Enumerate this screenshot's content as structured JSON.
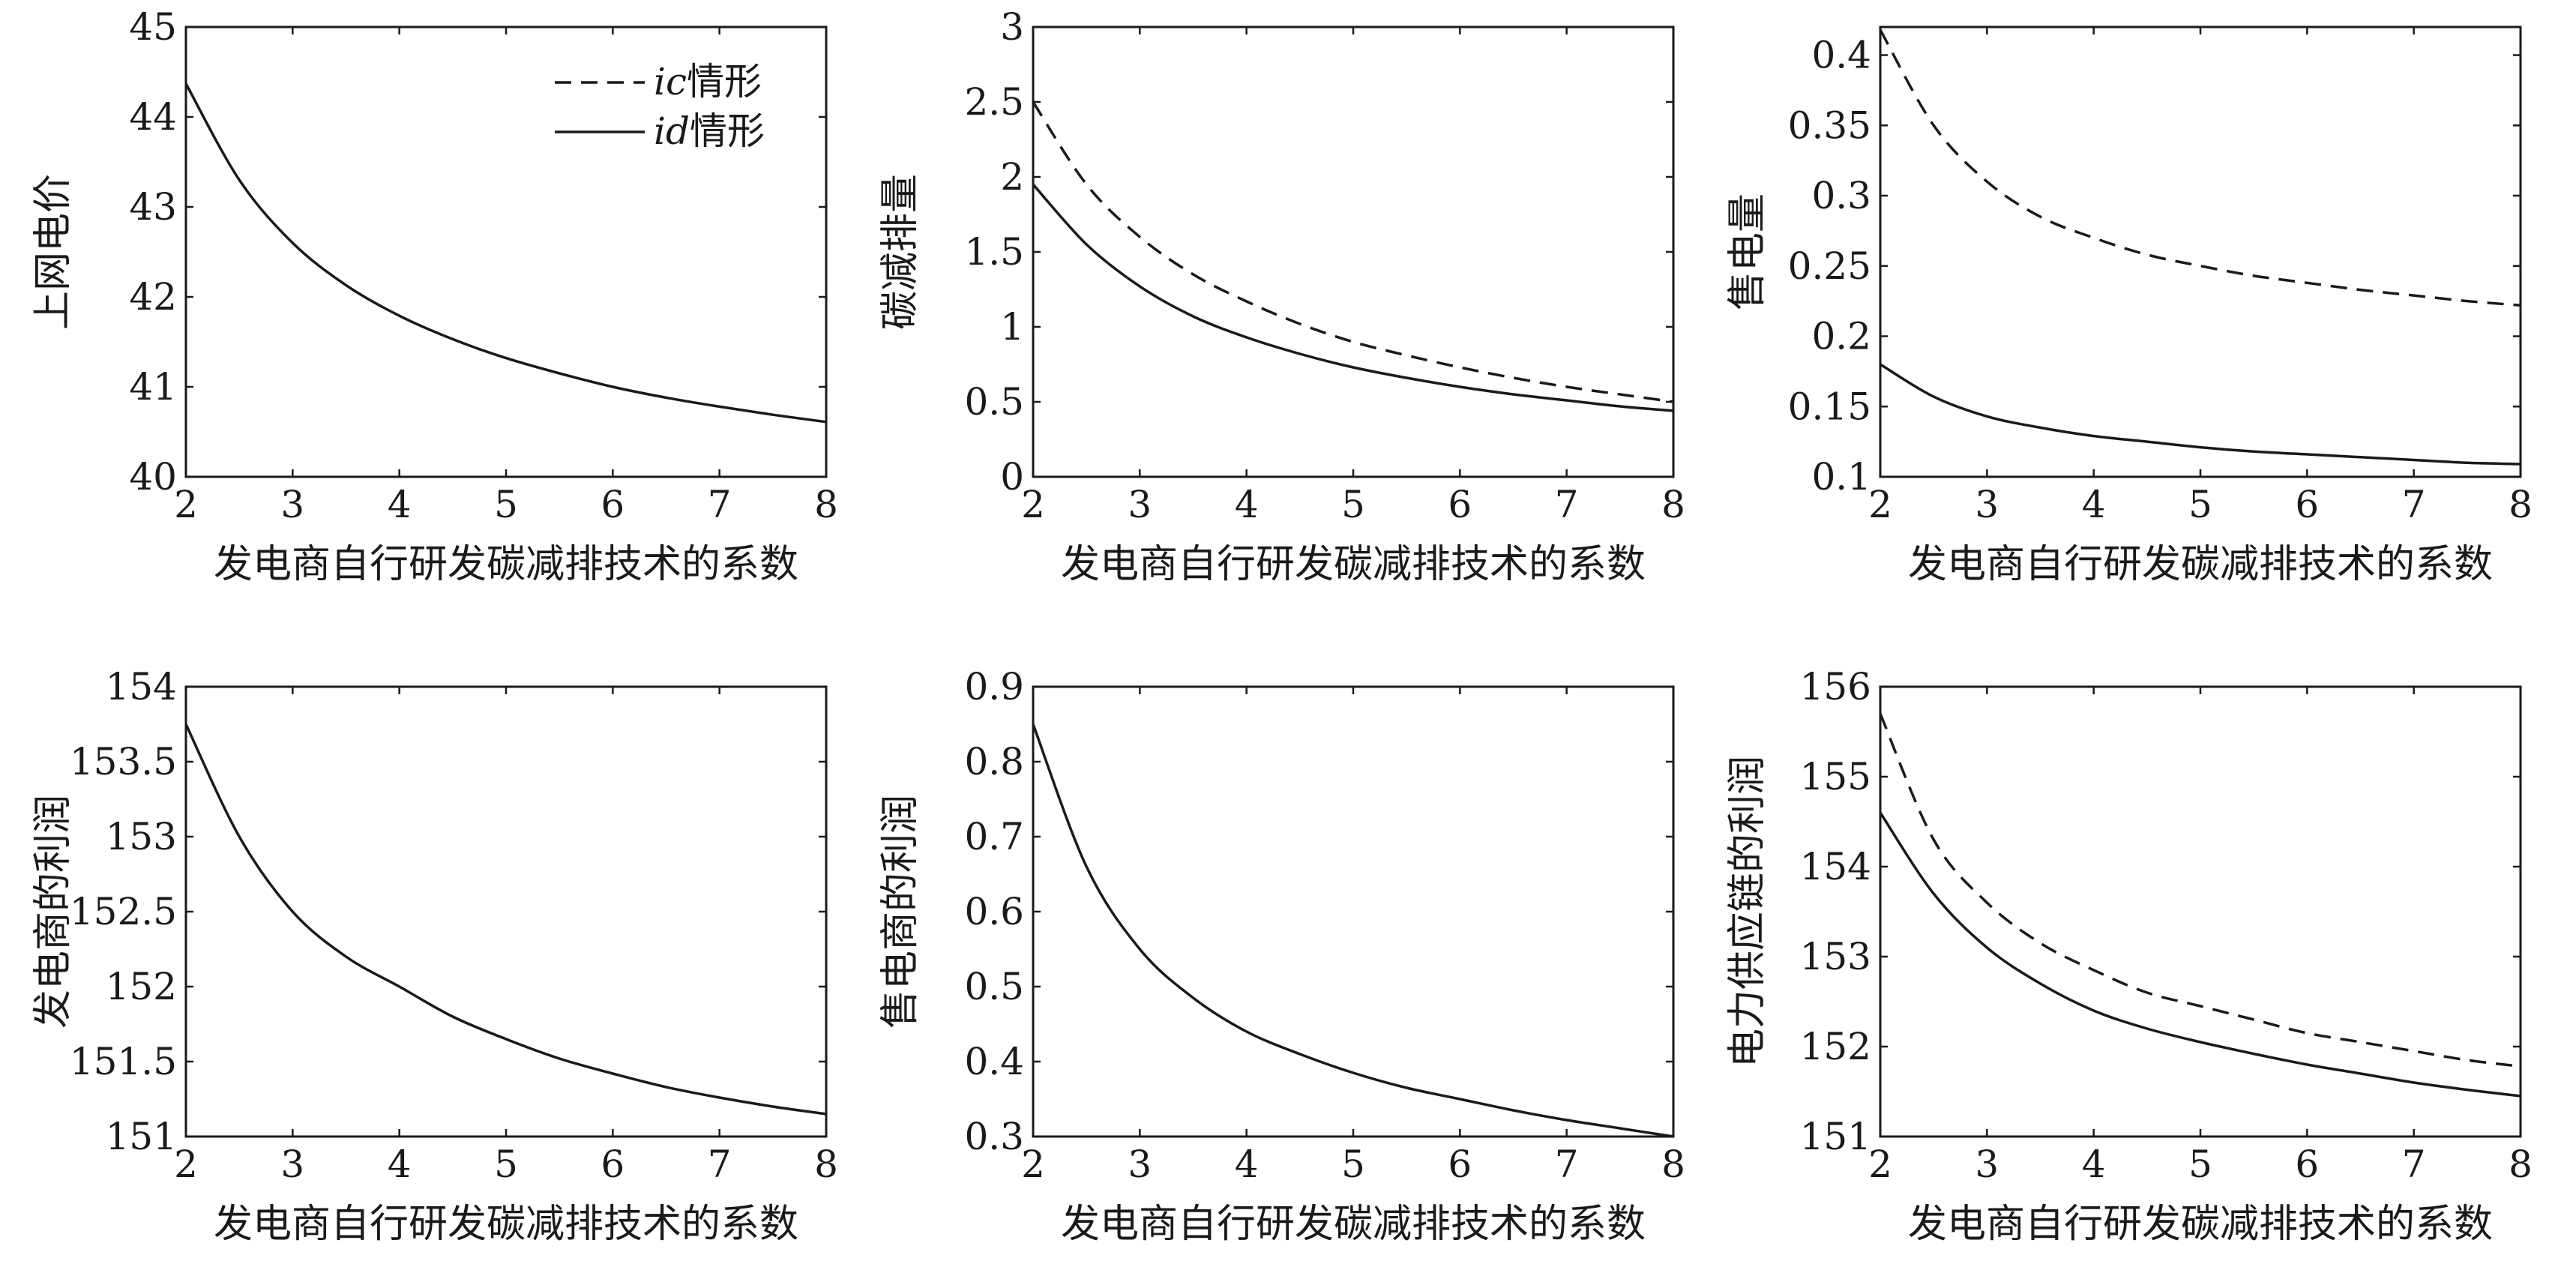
{
  "chart_data": [
    {
      "type": "line",
      "title": "",
      "xlabel": "发电商自行研发碳减排技术的系数",
      "ylabel": "上网电价",
      "xlim": [
        2,
        8
      ],
      "ylim": [
        40,
        45
      ],
      "xticks": [
        "2",
        "3",
        "4",
        "5",
        "6",
        "7",
        "8"
      ],
      "yticks": [
        "40",
        "41",
        "42",
        "43",
        "44",
        "45"
      ],
      "grid": false,
      "legend": {
        "placement": "top-right",
        "entries": [
          {
            "label_italic": "ic",
            "label_text": "情形",
            "style": "dashed"
          },
          {
            "label_italic": "id",
            "label_text": "情形",
            "style": "solid"
          }
        ]
      },
      "series": [
        {
          "style": "solid",
          "x": [
            2,
            2.5,
            3,
            3.5,
            4,
            4.5,
            5,
            5.5,
            6,
            6.5,
            7,
            7.5,
            8
          ],
          "y": [
            44.37,
            43.3,
            42.6,
            42.13,
            41.79,
            41.53,
            41.32,
            41.15,
            41.0,
            40.88,
            40.78,
            40.69,
            40.61
          ]
        }
      ]
    },
    {
      "type": "line",
      "title": "",
      "xlabel": "发电商自行研发碳减排技术的系数",
      "ylabel": "碳减排量",
      "xlim": [
        2,
        8
      ],
      "ylim": [
        0,
        3
      ],
      "xticks": [
        "2",
        "3",
        "4",
        "5",
        "6",
        "7",
        "8"
      ],
      "yticks": [
        "0",
        "0.5",
        "1",
        "1.5",
        "2",
        "2.5",
        "3"
      ],
      "grid": false,
      "series": [
        {
          "style": "dashed",
          "x": [
            2,
            2.5,
            3,
            3.5,
            4,
            4.5,
            5,
            5.5,
            6,
            6.5,
            7,
            7.5,
            8
          ],
          "y": [
            2.5,
            1.95,
            1.6,
            1.35,
            1.17,
            1.02,
            0.9,
            0.81,
            0.73,
            0.66,
            0.6,
            0.55,
            0.5
          ]
        },
        {
          "style": "solid",
          "x": [
            2,
            2.5,
            3,
            3.5,
            4,
            4.5,
            5,
            5.5,
            6,
            6.5,
            7,
            7.5,
            8
          ],
          "y": [
            1.95,
            1.55,
            1.27,
            1.07,
            0.93,
            0.82,
            0.73,
            0.66,
            0.6,
            0.55,
            0.51,
            0.47,
            0.44
          ]
        }
      ]
    },
    {
      "type": "line",
      "title": "",
      "xlabel": "发电商自行研发碳减排技术的系数",
      "ylabel": "售电量",
      "xlim": [
        2,
        8
      ],
      "ylim": [
        0.1,
        0.42
      ],
      "xticks": [
        "2",
        "3",
        "4",
        "5",
        "6",
        "7",
        "8"
      ],
      "yticks": [
        "0.1",
        "0.15",
        "0.2",
        "0.25",
        "0.3",
        "0.35",
        "0.4"
      ],
      "grid": false,
      "series": [
        {
          "style": "dashed",
          "x": [
            2,
            2.5,
            3,
            3.5,
            4,
            4.5,
            5,
            5.5,
            6,
            6.5,
            7,
            7.5,
            8
          ],
          "y": [
            0.418,
            0.35,
            0.31,
            0.285,
            0.27,
            0.258,
            0.25,
            0.243,
            0.238,
            0.233,
            0.229,
            0.225,
            0.222
          ]
        },
        {
          "style": "solid",
          "x": [
            2,
            2.5,
            3,
            3.5,
            4,
            4.5,
            5,
            5.5,
            6,
            6.5,
            7,
            7.5,
            8
          ],
          "y": [
            0.18,
            0.157,
            0.143,
            0.135,
            0.129,
            0.125,
            0.121,
            0.118,
            0.116,
            0.114,
            0.112,
            0.11,
            0.109
          ]
        }
      ]
    },
    {
      "type": "line",
      "title": "",
      "xlabel": "发电商自行研发碳减排技术的系数",
      "ylabel": "发电商的利润",
      "xlim": [
        2,
        8
      ],
      "ylim": [
        151,
        154
      ],
      "xticks": [
        "2",
        "3",
        "4",
        "5",
        "6",
        "7",
        "8"
      ],
      "yticks": [
        "151",
        "151.5",
        "152",
        "152.5",
        "153",
        "153.5",
        "154"
      ],
      "grid": false,
      "series": [
        {
          "style": "solid",
          "x": [
            2,
            2.5,
            3,
            3.5,
            4,
            4.5,
            5,
            5.5,
            6,
            6.5,
            7,
            7.5,
            8
          ],
          "y": [
            153.75,
            153.0,
            152.5,
            152.2,
            152.0,
            151.8,
            151.65,
            151.52,
            151.42,
            151.33,
            151.26,
            151.2,
            151.15
          ]
        }
      ]
    },
    {
      "type": "line",
      "title": "",
      "xlabel": "发电商自行研发碳减排技术的系数",
      "ylabel": "售电商的利润",
      "xlim": [
        2,
        8
      ],
      "ylim": [
        0.3,
        0.9
      ],
      "xticks": [
        "2",
        "3",
        "4",
        "5",
        "6",
        "7",
        "8"
      ],
      "yticks": [
        "0.3",
        "0.4",
        "0.5",
        "0.6",
        "0.7",
        "0.8",
        "0.9"
      ],
      "grid": false,
      "series": [
        {
          "style": "solid",
          "x": [
            2,
            2.5,
            3,
            3.5,
            4,
            4.5,
            5,
            5.5,
            6,
            6.5,
            7,
            7.5,
            8
          ],
          "y": [
            0.85,
            0.66,
            0.55,
            0.485,
            0.44,
            0.41,
            0.385,
            0.365,
            0.35,
            0.335,
            0.322,
            0.311,
            0.3
          ]
        }
      ]
    },
    {
      "type": "line",
      "title": "",
      "xlabel": "发电商自行研发碳减排技术的系数",
      "ylabel": "电力供应链的利润",
      "xlim": [
        2,
        8
      ],
      "ylim": [
        151,
        156
      ],
      "xticks": [
        "2",
        "3",
        "4",
        "5",
        "6",
        "7",
        "8"
      ],
      "yticks": [
        "151",
        "152",
        "153",
        "154",
        "155",
        "156"
      ],
      "grid": false,
      "series": [
        {
          "style": "dashed",
          "x": [
            2,
            2.5,
            3,
            3.5,
            4,
            4.5,
            5,
            5.5,
            6,
            6.5,
            7,
            7.5,
            8
          ],
          "y": [
            155.7,
            154.3,
            153.6,
            153.15,
            152.85,
            152.6,
            152.45,
            152.3,
            152.15,
            152.05,
            151.95,
            151.85,
            151.78
          ]
        },
        {
          "style": "solid",
          "x": [
            2,
            2.5,
            3,
            3.5,
            4,
            4.5,
            5,
            5.5,
            6,
            6.5,
            7,
            7.5,
            8
          ],
          "y": [
            154.6,
            153.7,
            153.1,
            152.7,
            152.4,
            152.2,
            152.05,
            151.92,
            151.8,
            151.7,
            151.6,
            151.52,
            151.45
          ]
        }
      ]
    }
  ]
}
